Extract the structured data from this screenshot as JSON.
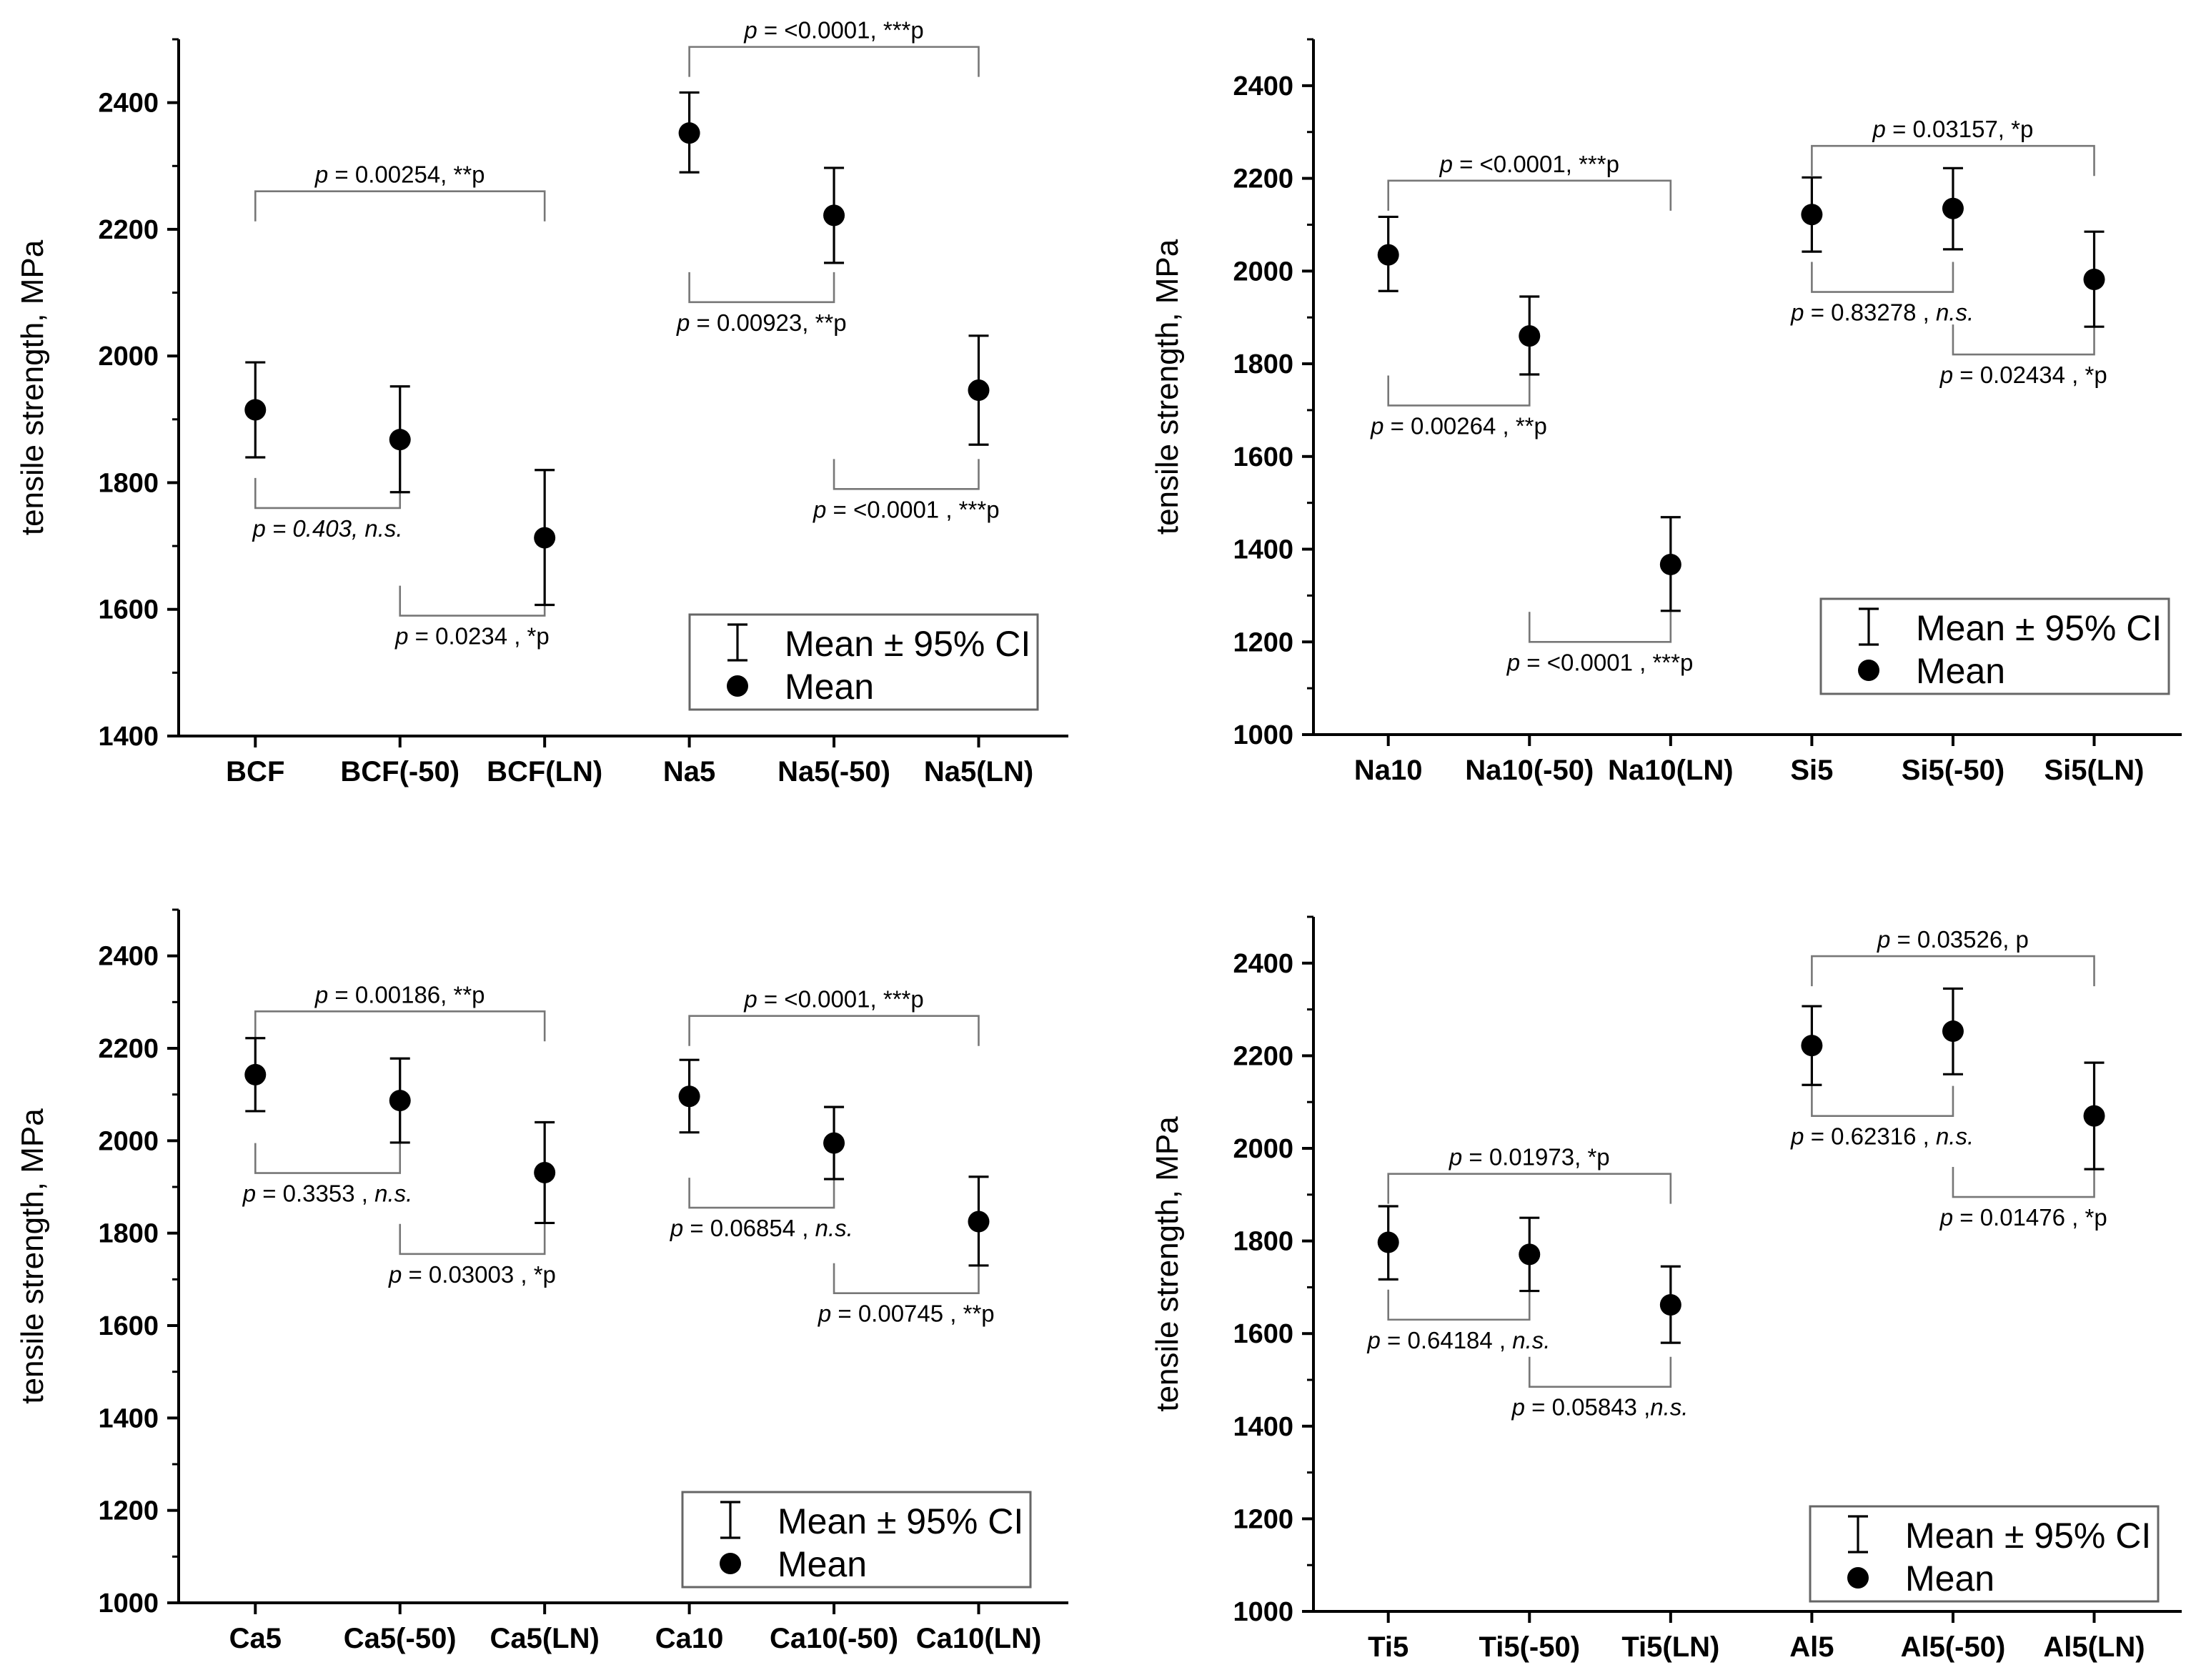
{
  "chart_data": [
    {
      "type": "scatter",
      "title": "",
      "xlabel": "",
      "ylabel": "tensile strength, MPa",
      "ylim": [
        1400,
        2500
      ],
      "yticks": [
        1400,
        1600,
        1800,
        2000,
        2200,
        2400
      ],
      "categories": [
        "BCF",
        "BCF(-50)",
        "BCF(LN)",
        "Na5",
        "Na5(-50)",
        "Na5(LN)"
      ],
      "series": [
        {
          "name": "Mean",
          "values": [
            1915,
            1868,
            1713,
            2352,
            2222,
            1946
          ],
          "ci_lower": [
            1840,
            1785,
            1607,
            2290,
            2147,
            1860
          ],
          "ci_upper": [
            1990,
            1952,
            1820,
            2416,
            2297,
            2032
          ]
        }
      ],
      "legend": {
        "position": "bottom-right",
        "entries": [
          "Mean ± 95% CI",
          "Mean"
        ]
      },
      "annotations": [
        {
          "from": 0,
          "to": 2,
          "side": "top",
          "level": 2260,
          "text_italic": "p",
          "text_rest": " = 0.00254, **p"
        },
        {
          "from": 0,
          "to": 1,
          "side": "bottom",
          "level": 1760,
          "text_italic": "p = 0.403, n.s.",
          "text_rest": ""
        },
        {
          "from": 1,
          "to": 2,
          "side": "bottom",
          "level": 1590,
          "text_italic": "p",
          "text_rest": " = 0.0234 , *p"
        },
        {
          "from": 3,
          "to": 5,
          "side": "top",
          "level": 2488,
          "text_italic": "p",
          "text_rest": " = <0.0001, ***p"
        },
        {
          "from": 3,
          "to": 4,
          "side": "bottom",
          "level": 2085,
          "text_italic": "p",
          "text_rest": " = 0.00923, **p"
        },
        {
          "from": 4,
          "to": 5,
          "side": "bottom",
          "level": 1790,
          "text_italic": "p",
          "text_rest": " = <0.0001 , ***p"
        }
      ]
    },
    {
      "type": "scatter",
      "title": "",
      "xlabel": "",
      "ylabel": "tensile strength, MPa",
      "ylim": [
        1000,
        2500
      ],
      "yticks": [
        1000,
        1200,
        1400,
        1600,
        1800,
        2000,
        2200,
        2400
      ],
      "categories": [
        "Na10",
        "Na10(-50)",
        "Na10(LN)",
        "Si5",
        "Si5(-50)",
        "Si5(LN)"
      ],
      "series": [
        {
          "name": "Mean",
          "values": [
            2035,
            1860,
            1367,
            2122,
            2135,
            1982
          ],
          "ci_lower": [
            1957,
            1777,
            1267,
            2042,
            2047,
            1880
          ],
          "ci_upper": [
            2117,
            1945,
            1469,
            2202,
            2222,
            2085
          ]
        }
      ],
      "legend": {
        "position": "bottom-right",
        "entries": [
          "Mean ± 95% CI",
          "Mean"
        ]
      },
      "annotations": [
        {
          "from": 0,
          "to": 2,
          "side": "top",
          "level": 2195,
          "text_italic": "p",
          "text_rest": " = <0.0001, ***p"
        },
        {
          "from": 0,
          "to": 1,
          "side": "bottom",
          "level": 1710,
          "text_italic": "p",
          "text_rest": " = 0.00264 , **p"
        },
        {
          "from": 1,
          "to": 2,
          "side": "bottom",
          "level": 1200,
          "text_italic": "p",
          "text_rest": " = <0.0001 , ***p"
        },
        {
          "from": 3,
          "to": 5,
          "side": "top",
          "level": 2270,
          "text_italic": "p",
          "text_rest": " = 0.03157, *p"
        },
        {
          "from": 3,
          "to": 4,
          "side": "bottom",
          "level": 1955,
          "text_italic": "p",
          "text_rest": " = 0.83278 , n.s.",
          "rest_italic_tail": "n.s."
        },
        {
          "from": 4,
          "to": 5,
          "side": "bottom",
          "level": 1820,
          "text_italic": "p",
          "text_rest": " = 0.02434 , *p"
        }
      ]
    },
    {
      "type": "scatter",
      "title": "",
      "xlabel": "",
      "ylabel": "tensile strength, MPa",
      "ylim": [
        1000,
        2500
      ],
      "yticks": [
        1000,
        1200,
        1400,
        1600,
        1800,
        2000,
        2200,
        2400
      ],
      "categories": [
        "Ca5",
        "Ca5(-50)",
        "Ca5(LN)",
        "Ca10",
        "Ca10(-50)",
        "Ca10(LN)"
      ],
      "series": [
        {
          "name": "Mean",
          "values": [
            2143,
            2087,
            1931,
            2096,
            1995,
            1825
          ],
          "ci_lower": [
            2064,
            1996,
            1822,
            2018,
            1917,
            1730
          ],
          "ci_upper": [
            2222,
            2178,
            2040,
            2175,
            2073,
            1922
          ]
        }
      ],
      "legend": {
        "position": "bottom-right",
        "entries": [
          "Mean ± 95% CI",
          "Mean"
        ]
      },
      "annotations": [
        {
          "from": 0,
          "to": 2,
          "side": "top",
          "level": 2280,
          "text_italic": "p",
          "text_rest": " = 0.00186, **p"
        },
        {
          "from": 0,
          "to": 1,
          "side": "bottom",
          "level": 1930,
          "text_italic": "p",
          "text_rest": " = 0.3353 , n.s.",
          "rest_italic_tail": "n.s."
        },
        {
          "from": 1,
          "to": 2,
          "side": "bottom",
          "level": 1755,
          "text_italic": "p",
          "text_rest": " = 0.03003 , *p"
        },
        {
          "from": 3,
          "to": 5,
          "side": "top",
          "level": 2270,
          "text_italic": "p",
          "text_rest": " = <0.0001, ***p"
        },
        {
          "from": 3,
          "to": 4,
          "side": "bottom",
          "level": 1855,
          "text_italic": "p",
          "text_rest": " = 0.06854 , n.s.",
          "rest_italic_tail": "n.s."
        },
        {
          "from": 4,
          "to": 5,
          "side": "bottom",
          "level": 1670,
          "text_italic": "p",
          "text_rest": " = 0.00745 , **p"
        }
      ]
    },
    {
      "type": "scatter",
      "title": "",
      "xlabel": "",
      "ylabel": "tensile strength, MPa",
      "ylim": [
        1000,
        2500
      ],
      "yticks": [
        1000,
        1200,
        1400,
        1600,
        1800,
        2000,
        2200,
        2400
      ],
      "categories": [
        "Ti5",
        "Ti5(-50)",
        "Ti5(LN)",
        "Al5",
        "Al5(-50)",
        "Al5(LN)"
      ],
      "series": [
        {
          "name": "Mean",
          "values": [
            1797,
            1771,
            1662,
            2222,
            2253,
            2070
          ],
          "ci_lower": [
            1717,
            1692,
            1580,
            2137,
            2160,
            1955
          ],
          "ci_upper": [
            1875,
            1850,
            1745,
            2307,
            2345,
            2185
          ]
        }
      ],
      "legend": {
        "position": "bottom-right",
        "entries": [
          "Mean ± 95% CI",
          "Mean"
        ]
      },
      "annotations": [
        {
          "from": 0,
          "to": 2,
          "side": "top",
          "level": 1945,
          "text_italic": "p",
          "text_rest": " = 0.01973, *p"
        },
        {
          "from": 0,
          "to": 1,
          "side": "bottom",
          "level": 1630,
          "text_italic": "p",
          "text_rest": " = 0.64184 , n.s.",
          "rest_italic_tail": "n.s."
        },
        {
          "from": 1,
          "to": 2,
          "side": "bottom",
          "level": 1485,
          "text_italic": "p",
          "text_rest": " = 0.05843 ,n.s.",
          "rest_italic_tail": "n.s."
        },
        {
          "from": 3,
          "to": 5,
          "side": "top",
          "level": 2415,
          "text_italic": "p",
          "text_rest": " = 0.03526, p"
        },
        {
          "from": 3,
          "to": 4,
          "side": "bottom",
          "level": 2070,
          "text_italic": "p",
          "text_rest": " = 0.62316 , n.s.",
          "rest_italic_tail": "n.s."
        },
        {
          "from": 4,
          "to": 5,
          "side": "bottom",
          "level": 1895,
          "text_italic": "p",
          "text_rest": " = 0.01476 , *p"
        }
      ]
    }
  ]
}
